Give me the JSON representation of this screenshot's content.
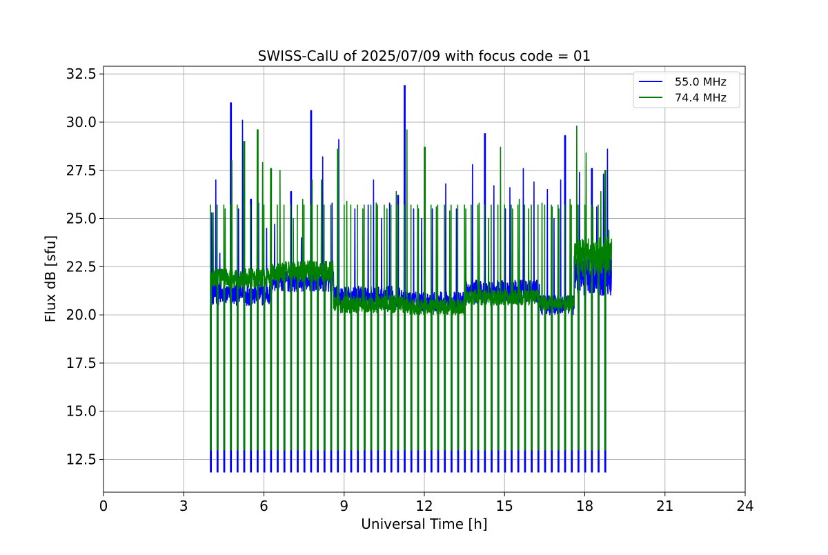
{
  "chart_data": {
    "type": "line",
    "title": "SWISS-CalU of 2025/07/09 with focus code = 01",
    "xlabel": "Universal Time [h]",
    "ylabel": "Flux dB [sfu]",
    "xlim": [
      0,
      24
    ],
    "ylim": [
      10.8,
      32.9
    ],
    "xticks": [
      0,
      3,
      6,
      9,
      12,
      15,
      18,
      21,
      24
    ],
    "xtick_labels": [
      "0",
      "3",
      "6",
      "9",
      "12",
      "15",
      "18",
      "21",
      "24"
    ],
    "yticks": [
      12.5,
      15.0,
      17.5,
      20.0,
      22.5,
      25.0,
      27.5,
      30.0,
      32.5
    ],
    "ytick_labels": [
      "12.5",
      "15.0",
      "17.5",
      "20.0",
      "22.5",
      "25.0",
      "27.5",
      "30.0",
      "32.5"
    ],
    "grid": true,
    "legend_position": "top-right",
    "time_range": [
      4.0,
      19.0
    ],
    "calibration_period_h": 0.25,
    "series": [
      {
        "name": "55.0 MHz",
        "color": "#0000ff",
        "calibration_low": 11.85,
        "calibration_step": 12.95,
        "baseline_segments": [
          {
            "x0": 4.0,
            "x1": 6.3,
            "low": 20.5,
            "high": 21.6
          },
          {
            "x0": 6.3,
            "x1": 8.6,
            "low": 21.2,
            "high": 22.4
          },
          {
            "x0": 8.6,
            "x1": 11.2,
            "low": 20.4,
            "high": 21.5
          },
          {
            "x0": 11.2,
            "x1": 13.5,
            "low": 20.2,
            "high": 21.2
          },
          {
            "x0": 13.5,
            "x1": 16.3,
            "low": 20.6,
            "high": 21.8
          },
          {
            "x0": 16.3,
            "x1": 17.6,
            "low": 20.0,
            "high": 21.0
          },
          {
            "x0": 17.6,
            "x1": 19.0,
            "low": 21.0,
            "high": 23.3
          }
        ],
        "peaks": [
          {
            "x": 4.05,
            "y": 25.3
          },
          {
            "x": 4.2,
            "y": 27.0
          },
          {
            "x": 4.35,
            "y": 23.2
          },
          {
            "x": 4.75,
            "y": 31.0
          },
          {
            "x": 5.05,
            "y": 25.5
          },
          {
            "x": 5.2,
            "y": 30.1
          },
          {
            "x": 5.5,
            "y": 26.0
          },
          {
            "x": 5.8,
            "y": 25.8
          },
          {
            "x": 6.1,
            "y": 24.5
          },
          {
            "x": 6.4,
            "y": 24.7
          },
          {
            "x": 7.0,
            "y": 26.4
          },
          {
            "x": 7.4,
            "y": 24.0
          },
          {
            "x": 7.75,
            "y": 30.6
          },
          {
            "x": 8.2,
            "y": 28.2
          },
          {
            "x": 8.55,
            "y": 25.8
          },
          {
            "x": 8.8,
            "y": 29.1
          },
          {
            "x": 9.4,
            "y": 25.5
          },
          {
            "x": 9.9,
            "y": 25.7
          },
          {
            "x": 10.1,
            "y": 27.0
          },
          {
            "x": 10.4,
            "y": 25.0
          },
          {
            "x": 10.7,
            "y": 25.8
          },
          {
            "x": 11.0,
            "y": 26.2
          },
          {
            "x": 11.25,
            "y": 31.9
          },
          {
            "x": 11.6,
            "y": 25.5
          },
          {
            "x": 11.9,
            "y": 25.0
          },
          {
            "x": 12.3,
            "y": 25.5
          },
          {
            "x": 12.8,
            "y": 26.8
          },
          {
            "x": 13.2,
            "y": 25.5
          },
          {
            "x": 13.8,
            "y": 27.8
          },
          {
            "x": 14.25,
            "y": 29.4
          },
          {
            "x": 14.6,
            "y": 26.7
          },
          {
            "x": 15.0,
            "y": 25.5
          },
          {
            "x": 15.2,
            "y": 26.6
          },
          {
            "x": 15.7,
            "y": 27.6
          },
          {
            "x": 16.1,
            "y": 26.9
          },
          {
            "x": 16.6,
            "y": 26.5
          },
          {
            "x": 16.85,
            "y": 25.0
          },
          {
            "x": 17.1,
            "y": 27.0
          },
          {
            "x": 17.25,
            "y": 29.3
          },
          {
            "x": 17.8,
            "y": 27.4
          },
          {
            "x": 18.25,
            "y": 27.6
          },
          {
            "x": 18.45,
            "y": 25.6
          },
          {
            "x": 18.7,
            "y": 27.3
          },
          {
            "x": 18.85,
            "y": 28.6
          }
        ]
      },
      {
        "name": "74.4 MHz",
        "color": "#008000",
        "calibration_low": 13.0,
        "calibration_step": 25.7,
        "baseline_segments": [
          {
            "x0": 4.0,
            "x1": 6.3,
            "low": 21.4,
            "high": 22.4
          },
          {
            "x0": 6.3,
            "x1": 8.6,
            "low": 21.7,
            "high": 22.8
          },
          {
            "x0": 8.6,
            "x1": 11.2,
            "low": 20.1,
            "high": 21.0
          },
          {
            "x0": 11.2,
            "x1": 13.5,
            "low": 20.0,
            "high": 20.8
          },
          {
            "x0": 13.5,
            "x1": 16.3,
            "low": 20.5,
            "high": 21.3
          },
          {
            "x0": 16.3,
            "x1": 17.6,
            "low": 20.2,
            "high": 21.0
          },
          {
            "x0": 17.6,
            "x1": 19.0,
            "low": 22.0,
            "high": 24.0
          }
        ],
        "peaks": [
          {
            "x": 4.1,
            "y": 25.3
          },
          {
            "x": 4.55,
            "y": 25.5
          },
          {
            "x": 4.8,
            "y": 28.0
          },
          {
            "x": 5.25,
            "y": 29.0
          },
          {
            "x": 5.75,
            "y": 29.6
          },
          {
            "x": 5.95,
            "y": 27.9
          },
          {
            "x": 6.25,
            "y": 27.6
          },
          {
            "x": 6.6,
            "y": 27.5
          },
          {
            "x": 7.1,
            "y": 25.0
          },
          {
            "x": 7.45,
            "y": 26.0
          },
          {
            "x": 7.8,
            "y": 27.0
          },
          {
            "x": 8.15,
            "y": 27.0
          },
          {
            "x": 8.75,
            "y": 28.6
          },
          {
            "x": 9.1,
            "y": 25.9
          },
          {
            "x": 9.7,
            "y": 25.5
          },
          {
            "x": 10.2,
            "y": 25.8
          },
          {
            "x": 10.6,
            "y": 25.5
          },
          {
            "x": 10.95,
            "y": 26.4
          },
          {
            "x": 11.35,
            "y": 29.6
          },
          {
            "x": 11.75,
            "y": 25.5
          },
          {
            "x": 12.0,
            "y": 28.7
          },
          {
            "x": 12.45,
            "y": 25.6
          },
          {
            "x": 12.95,
            "y": 25.4
          },
          {
            "x": 13.55,
            "y": 25.5
          },
          {
            "x": 14.05,
            "y": 25.8
          },
          {
            "x": 14.4,
            "y": 25.0
          },
          {
            "x": 14.85,
            "y": 28.7
          },
          {
            "x": 15.3,
            "y": 25.5
          },
          {
            "x": 15.55,
            "y": 26.0
          },
          {
            "x": 15.9,
            "y": 25.5
          },
          {
            "x": 16.4,
            "y": 25.8
          },
          {
            "x": 16.75,
            "y": 25.6
          },
          {
            "x": 17.0,
            "y": 25.5
          },
          {
            "x": 17.45,
            "y": 26.0
          },
          {
            "x": 17.7,
            "y": 29.8
          },
          {
            "x": 18.05,
            "y": 28.4
          },
          {
            "x": 18.3,
            "y": 25.6
          },
          {
            "x": 18.6,
            "y": 26.4
          },
          {
            "x": 18.75,
            "y": 27.5
          },
          {
            "x": 18.9,
            "y": 24.4
          }
        ]
      }
    ]
  }
}
